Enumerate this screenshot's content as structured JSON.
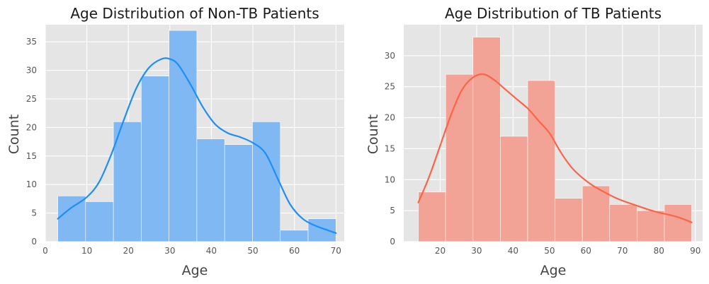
{
  "chart_data": [
    {
      "type": "bar",
      "title": "Age Distribution of Non-TB Patients",
      "xlabel": "Age",
      "ylabel": "Count",
      "xlim": [
        0,
        72
      ],
      "ylim": [
        0,
        38
      ],
      "xticks": [
        "0",
        "10",
        "20",
        "30",
        "40",
        "50",
        "60",
        "70"
      ],
      "yticks": [
        "0",
        "5",
        "10",
        "15",
        "20",
        "25",
        "30",
        "35"
      ],
      "bin_edges": [
        3,
        9.7,
        16.4,
        23.1,
        29.8,
        36.5,
        43.2,
        49.9,
        56.6,
        63.3,
        70
      ],
      "values": [
        8,
        7,
        21,
        29,
        37,
        18,
        17,
        21,
        2,
        4
      ],
      "kde": {
        "x": [
          3,
          6,
          10,
          13,
          16,
          19,
          22,
          25,
          28,
          30,
          32,
          35,
          38,
          41,
          44,
          47,
          50,
          53,
          56,
          59,
          62,
          65,
          68,
          70
        ],
        "y": [
          4.0,
          5.8,
          7.8,
          10.5,
          15.5,
          21.5,
          27.0,
          30.5,
          32.0,
          32.0,
          31.0,
          27.5,
          23.5,
          20.5,
          19.0,
          18.3,
          17.3,
          15.5,
          11.0,
          6.5,
          4.0,
          2.8,
          2.0,
          1.5
        ]
      },
      "bar_color": "#7fb8f3",
      "line_color": "#1e8ef7",
      "grid": true
    },
    {
      "type": "bar",
      "title": "Age Distribution of TB Patients",
      "xlabel": "Age",
      "ylabel": "Count",
      "xlim": [
        10,
        92
      ],
      "ylim": [
        0,
        35
      ],
      "xticks": [
        "20",
        "30",
        "40",
        "50",
        "60",
        "70",
        "80",
        "90"
      ],
      "yticks": [
        "0",
        "5",
        "10",
        "15",
        "20",
        "25",
        "30"
      ],
      "bin_edges": [
        14,
        21.5,
        29,
        36.5,
        44,
        51.5,
        59,
        66.5,
        74,
        81.5,
        89
      ],
      "values": [
        8,
        27,
        33,
        17,
        26,
        7,
        9,
        6,
        5,
        6
      ],
      "kde": {
        "x": [
          14,
          17,
          20,
          23,
          26,
          29,
          32,
          35,
          38,
          41,
          44,
          47,
          50,
          53,
          56,
          59,
          62,
          65,
          68,
          71,
          74,
          77,
          80,
          83,
          86,
          89
        ],
        "y": [
          6.3,
          10.5,
          15.5,
          20.5,
          24.5,
          26.5,
          27.0,
          26.0,
          24.5,
          23.0,
          21.5,
          19.5,
          17.5,
          14.5,
          12.0,
          10.3,
          9.0,
          8.0,
          7.1,
          6.4,
          5.8,
          5.2,
          4.7,
          4.3,
          3.8,
          3.1
        ]
      },
      "bar_color": "#f3a396",
      "line_color": "#fd6347",
      "grid": true
    }
  ]
}
